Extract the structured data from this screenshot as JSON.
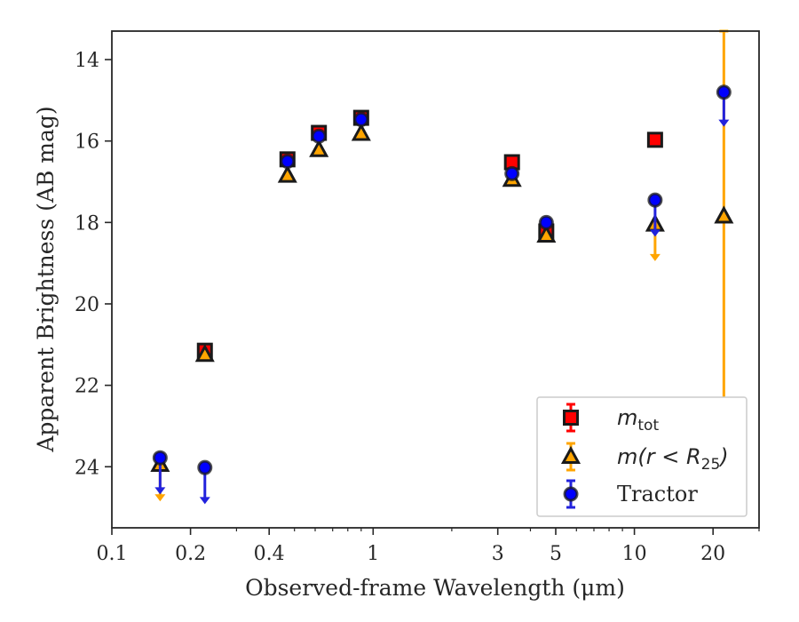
{
  "chart_data": {
    "type": "scatter",
    "xlabel": "Observed-frame Wavelength (μm)",
    "ylabel": "Apparent Brightness (AB mag)",
    "xscale": "log",
    "xlim": [
      0.1,
      30
    ],
    "ylim": [
      25.5,
      13.3
    ],
    "y_inverted": true,
    "x_ticks": [
      0.1,
      0.2,
      0.4,
      1,
      3,
      5,
      10,
      20
    ],
    "x_tick_labels": [
      "0.1",
      "0.2",
      "0.4",
      "1",
      "3",
      "5",
      "10",
      "20"
    ],
    "y_ticks": [
      14,
      16,
      18,
      20,
      22,
      24
    ],
    "y_tick_labels": [
      "14",
      "16",
      "18",
      "20",
      "22",
      "24"
    ],
    "legend_position": "lower-right",
    "series": [
      {
        "name": "m_tot",
        "legend_main": "m",
        "legend_sub": "tot",
        "marker": "square",
        "face_color": "#ff0000",
        "edge_color": "#1a1a1a",
        "err_color": "#ff0000",
        "points": [
          {
            "x": 0.227,
            "y": 21.15
          },
          {
            "x": 0.47,
            "y": 16.45
          },
          {
            "x": 0.62,
            "y": 15.8
          },
          {
            "x": 0.9,
            "y": 15.43
          },
          {
            "x": 3.4,
            "y": 16.52
          },
          {
            "x": 4.6,
            "y": 18.22
          },
          {
            "x": 12.0,
            "y": 15.97
          }
        ]
      },
      {
        "name": "m(r<R25)",
        "legend_main": "m(r < R",
        "legend_sub": "25",
        "legend_close": ")",
        "marker": "triangle",
        "face_color": "#ffa500",
        "edge_color": "#1a1a1a",
        "err_color": "#ffa500",
        "points": [
          {
            "x": 0.153,
            "y": 23.95,
            "upper_limit": true,
            "limit_to": 24.85
          },
          {
            "x": 0.227,
            "y": 21.25
          },
          {
            "x": 0.47,
            "y": 16.85
          },
          {
            "x": 0.62,
            "y": 16.22
          },
          {
            "x": 0.9,
            "y": 15.82
          },
          {
            "x": 3.4,
            "y": 16.95
          },
          {
            "x": 4.6,
            "y": 18.32
          },
          {
            "x": 12.0,
            "y": 18.05,
            "upper_limit": true,
            "limit_to": 18.95
          },
          {
            "x": 22.0,
            "y": 17.85,
            "err_low": 13.3,
            "err_high": 22.4
          }
        ]
      },
      {
        "name": "Tractor",
        "legend_main": "Tractor",
        "marker": "circle",
        "face_color": "#0000ff",
        "edge_color": "#1a1a1a",
        "err_color": "#2222dd",
        "points": [
          {
            "x": 0.153,
            "y": 23.78,
            "upper_limit": true,
            "limit_to": 24.68
          },
          {
            "x": 0.227,
            "y": 24.02,
            "upper_limit": true,
            "limit_to": 24.92
          },
          {
            "x": 0.47,
            "y": 16.5
          },
          {
            "x": 0.62,
            "y": 15.88
          },
          {
            "x": 0.9,
            "y": 15.47
          },
          {
            "x": 3.4,
            "y": 16.8
          },
          {
            "x": 4.6,
            "y": 18.0
          },
          {
            "x": 12.0,
            "y": 17.45,
            "upper_limit": true,
            "limit_to": 18.35
          },
          {
            "x": 22.0,
            "y": 14.8,
            "upper_limit": true,
            "limit_to": 15.65
          }
        ]
      }
    ]
  }
}
